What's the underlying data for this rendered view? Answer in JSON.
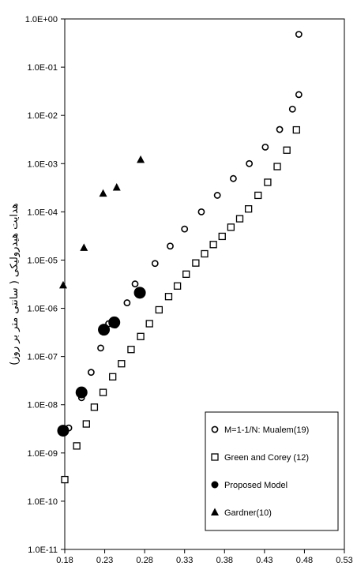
{
  "chart_data": {
    "type": "scatter",
    "title": "",
    "xlabel": "",
    "ylabel": "هدایت هیدرولیکی ( سانتی متر بر روز)",
    "xlim": [
      0.18,
      0.53
    ],
    "ylim_log10": [
      -11,
      0
    ],
    "y_scale": "log",
    "x_ticks": [
      "0.18",
      "0.23",
      "0.28",
      "0.33",
      "0.38",
      "0.43",
      "0.48",
      "0.53"
    ],
    "y_ticks": [
      "1.0E+00",
      "1.0E-01",
      "1.0E-02",
      "1.0E-03",
      "1.0E-04",
      "1.0E-05",
      "1.0E-06",
      "1.0E-07",
      "1.0E-08",
      "1.0E-09",
      "1.0E-10",
      "1.0E-11"
    ],
    "grid": false,
    "legend_position": "bottom-right",
    "series": [
      {
        "name": "M=1-1/N: Mualem(19)",
        "marker": "circle-open",
        "points": [
          [
            0.178,
            2.9e-09
          ],
          [
            0.185,
            3.3e-09
          ],
          [
            0.201,
            1.4e-08
          ],
          [
            0.213,
            4.7e-08
          ],
          [
            0.225,
            1.5e-07
          ],
          [
            0.235,
            4.8e-07
          ],
          [
            0.243,
            4.5e-07
          ],
          [
            0.258,
            1.3e-06
          ],
          [
            0.268,
            3.2e-06
          ],
          [
            0.293,
            8.5e-06
          ],
          [
            0.312,
            1.95e-05
          ],
          [
            0.33,
            4.4e-05
          ],
          [
            0.351,
            0.0001
          ],
          [
            0.371,
            0.00022
          ],
          [
            0.391,
            0.00049
          ],
          [
            0.411,
            0.001
          ],
          [
            0.431,
            0.0022
          ],
          [
            0.449,
            0.0051
          ],
          [
            0.465,
            0.0135
          ],
          [
            0.473,
            0.027
          ],
          [
            0.473,
            0.48
          ]
        ]
      },
      {
        "name": "Green and Corey (12)",
        "marker": "square-open",
        "points": [
          [
            0.18,
            2.8e-10
          ],
          [
            0.195,
            1.4e-09
          ],
          [
            0.207,
            4e-09
          ],
          [
            0.217,
            8.9e-09
          ],
          [
            0.228,
            1.8e-08
          ],
          [
            0.24,
            3.8e-08
          ],
          [
            0.251,
            7.1e-08
          ],
          [
            0.263,
            1.4e-07
          ],
          [
            0.275,
            2.6e-07
          ],
          [
            0.286,
            4.8e-07
          ],
          [
            0.298,
            9.3e-07
          ],
          [
            0.31,
            1.75e-06
          ],
          [
            0.321,
            2.9e-06
          ],
          [
            0.332,
            5.1e-06
          ],
          [
            0.344,
            8.7e-06
          ],
          [
            0.355,
            1.35e-05
          ],
          [
            0.366,
            2.1e-05
          ],
          [
            0.377,
            3.1e-05
          ],
          [
            0.388,
            4.8e-05
          ],
          [
            0.399,
            7.2e-05
          ],
          [
            0.41,
            0.000115
          ],
          [
            0.422,
            0.00022
          ],
          [
            0.434,
            0.00041
          ],
          [
            0.446,
            0.00087
          ],
          [
            0.458,
            0.0019
          ],
          [
            0.47,
            0.005
          ]
        ]
      },
      {
        "name": "Proposed Model",
        "marker": "circle-filled",
        "points": [
          [
            0.178,
            2.9e-09
          ],
          [
            0.201,
            1.8e-08
          ],
          [
            0.229,
            3.6e-07
          ],
          [
            0.242,
            5.1e-07
          ],
          [
            0.274,
            2.1e-06
          ]
        ]
      },
      {
        "name": "Gardner(10)",
        "marker": "triangle-filled",
        "points": [
          [
            0.178,
            3e-06
          ],
          [
            0.204,
            1.8e-05
          ],
          [
            0.228,
            0.00024
          ],
          [
            0.245,
            0.00032
          ],
          [
            0.275,
            0.0012
          ]
        ]
      }
    ]
  }
}
